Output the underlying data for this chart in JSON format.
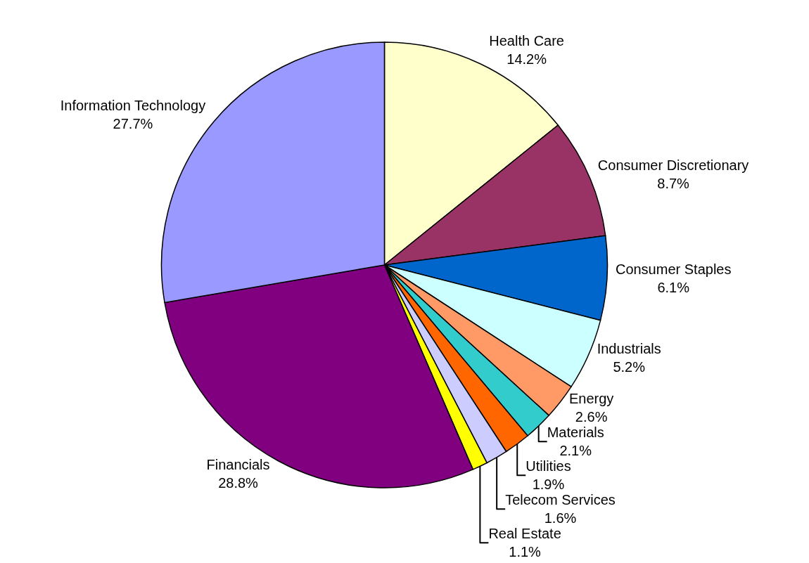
{
  "chart_data": {
    "type": "pie",
    "categories": [
      "Health Care",
      "Consumer Discretionary",
      "Consumer Staples",
      "Industrials",
      "Energy",
      "Materials",
      "Utilities",
      "Telecom Services",
      "Real Estate",
      "Financials",
      "Information Technology"
    ],
    "values": [
      14.2,
      8.7,
      6.1,
      5.2,
      2.6,
      2.1,
      1.9,
      1.6,
      1.1,
      28.8,
      27.7
    ],
    "value_labels": [
      "14.2%",
      "8.7%",
      "6.1%",
      "5.2%",
      "2.6%",
      "2.1%",
      "1.9%",
      "1.6%",
      "1.1%",
      "28.8%",
      "27.7%"
    ],
    "colors": [
      "#ffffcc",
      "#993366",
      "#0066cc",
      "#ccffff",
      "#ff9966",
      "#33cccc",
      "#ff6600",
      "#ccccff",
      "#ffff00",
      "#800080",
      "#9999ff"
    ],
    "legend": false
  }
}
